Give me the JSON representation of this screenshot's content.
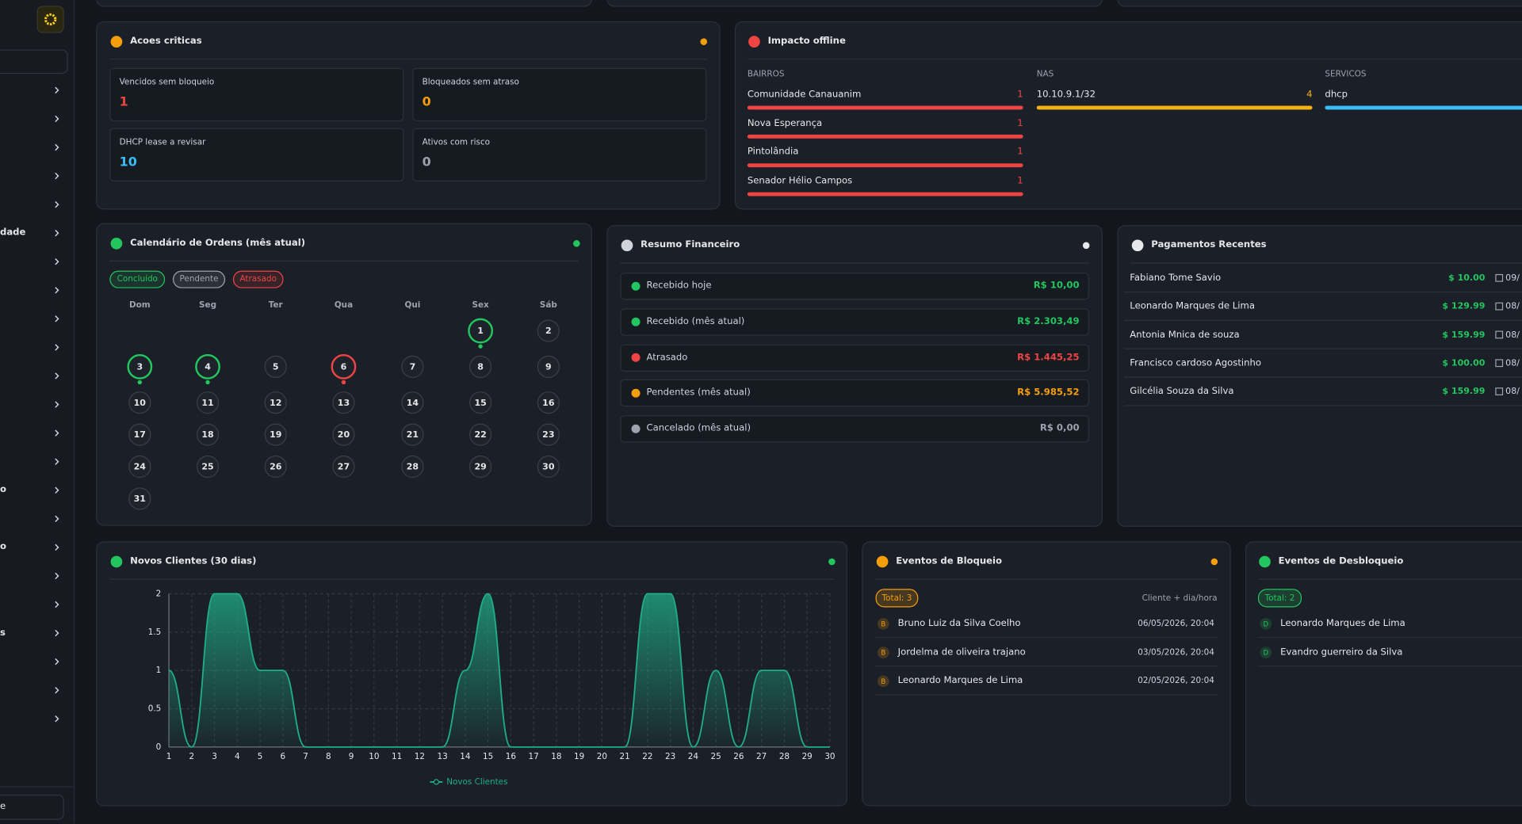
{
  "sidebar": {
    "items": [
      null,
      null,
      null,
      null,
      null,
      "dade",
      null,
      null,
      null,
      null,
      null,
      null,
      null,
      null,
      "o",
      null,
      "o",
      null,
      null,
      "s",
      null,
      null,
      null
    ],
    "footer": "e"
  },
  "acoes_criticas": {
    "title": "Acoes criticas",
    "icon_color": "#f59e0b",
    "status_dot": "#f59e0b",
    "tiles": [
      {
        "label": "Vencidos sem bloqueio",
        "value": 1,
        "color": "#ef4444"
      },
      {
        "label": "Bloqueados sem atraso",
        "value": 0,
        "color": "#f59e0b"
      },
      {
        "label": "DHCP lease a revisar",
        "value": 10,
        "color": "#38bdf8"
      },
      {
        "label": "Ativos com risco",
        "value": 0,
        "color": "#9ca3af"
      }
    ]
  },
  "impacto_offline": {
    "title": "Impacto offline",
    "icon_color": "#ef4444",
    "columns": [
      {
        "header": "BAIRROS",
        "color": "#ef4444",
        "items": [
          {
            "name": "Comunidade Canauanim",
            "value": 1
          },
          {
            "name": "Nova Esperança",
            "value": 1
          },
          {
            "name": "Pintolândia",
            "value": 1
          },
          {
            "name": "Senador Hélio Campos",
            "value": 1
          }
        ]
      },
      {
        "header": "NAS",
        "color": "#f5b014",
        "items": [
          {
            "name": "10.10.9.1/32",
            "value": 4
          }
        ]
      },
      {
        "header": "SERVICOS",
        "color": "#38bdf8",
        "items": [
          {
            "name": "dhcp"
          }
        ]
      }
    ]
  },
  "calendario": {
    "title": "Calendário de Ordens (mês atual)",
    "icon_color": "#22c55e",
    "status_dot": "#22c55e",
    "legend": [
      {
        "label": "Concluído",
        "color": "#22c55e",
        "days": [
          1,
          3,
          4
        ]
      },
      {
        "label": "Pendente",
        "color": "#9ca3af",
        "days": []
      },
      {
        "label": "Atrasado",
        "color": "#ef4444",
        "days": [
          6
        ]
      }
    ],
    "weekdays": [
      "Dom",
      "Seg",
      "Ter",
      "Qua",
      "Qui",
      "Sex",
      "Sáb"
    ],
    "weeks": [
      [
        null,
        null,
        null,
        null,
        null,
        1,
        2
      ],
      [
        3,
        4,
        5,
        6,
        7,
        8,
        9
      ],
      [
        10,
        11,
        12,
        13,
        14,
        15,
        16
      ],
      [
        17,
        18,
        19,
        20,
        21,
        22,
        23
      ],
      [
        24,
        25,
        26,
        27,
        28,
        29,
        30
      ],
      [
        31,
        null,
        null,
        null,
        null,
        null,
        null
      ]
    ]
  },
  "resumo_financeiro": {
    "title": "Resumo Financeiro",
    "icon_color": "#d1d5db",
    "status_dot": "#e5e7eb",
    "rows": [
      {
        "label": "Recebido hoje",
        "value": "R$ 10,00",
        "color": "#22c55e"
      },
      {
        "label": "Recebido (mês atual)",
        "value": "R$ 2.303,49",
        "color": "#22c55e"
      },
      {
        "label": "Atrasado",
        "value": "R$ 1.445,25",
        "color": "#ef4444"
      },
      {
        "label": "Pendentes (mês atual)",
        "value": "R$ 5.985,52",
        "color": "#f59e0b"
      },
      {
        "label": "Cancelado (mês atual)",
        "value": "R$ 0,00",
        "color": "#9ca3af"
      }
    ]
  },
  "pagamentos_recentes": {
    "title": "Pagamentos Recentes",
    "icon_color": "#e5e7eb",
    "rows": [
      {
        "name": "Fabiano Tome Savio",
        "amount": "$ 10.00",
        "date": "09/"
      },
      {
        "name": "Leonardo Marques de Lima",
        "amount": "$ 129.99",
        "date": "08/"
      },
      {
        "name": "Antonia Mnica de souza",
        "amount": "$ 159.99",
        "date": "08/"
      },
      {
        "name": "Francisco cardoso Agostinho",
        "amount": "$ 100.00",
        "date": "08/"
      },
      {
        "name": "Gilcélia Souza da Silva",
        "amount": "$ 159.99",
        "date": "08/"
      }
    ]
  },
  "chart_data": {
    "type": "line",
    "title": "Novos Clientes (30 dias)",
    "icon_color": "#22c55e",
    "status_dot": "#22c55e",
    "categories": [
      "1",
      "2",
      "3",
      "4",
      "5",
      "6",
      "7",
      "8",
      "9",
      "10",
      "11",
      "12",
      "13",
      "14",
      "15",
      "16",
      "17",
      "18",
      "19",
      "20",
      "21",
      "22",
      "23",
      "24",
      "25",
      "26",
      "27",
      "28",
      "29",
      "30"
    ],
    "series": [
      {
        "name": "Novos Clientes",
        "color": "#1fae86",
        "values": [
          1,
          0,
          2,
          2,
          1,
          1,
          0,
          0,
          0,
          0,
          0,
          0,
          0,
          1,
          2,
          0,
          0,
          0,
          0,
          0,
          0,
          2,
          2,
          0,
          1,
          0,
          1,
          1,
          0,
          0
        ]
      }
    ],
    "ylim": [
      0,
      2
    ],
    "yticks": [
      0,
      0.5,
      1,
      1.5,
      2
    ],
    "grid": true
  },
  "eventos_bloqueio": {
    "title": "Eventos de Bloqueio",
    "icon_color": "#f59e0b",
    "status_dot": "#f59e0b",
    "total": "Total: 3",
    "column_label": "Cliente + dia/hora",
    "rows": [
      {
        "initial": "B",
        "name": "Bruno Luiz da Silva Coelho",
        "date": "06/05/2026, 20:04"
      },
      {
        "initial": "B",
        "name": "Jordelma de oliveira trajano",
        "date": "03/05/2026, 20:04"
      },
      {
        "initial": "B",
        "name": "Leonardo Marques de Lima",
        "date": "02/05/2026, 20:04"
      }
    ]
  },
  "eventos_desbloqueio": {
    "title": "Eventos de Desbloqueio",
    "icon_color": "#22c55e",
    "total": "Total: 2",
    "rows": [
      {
        "initial": "D",
        "name": "Leonardo Marques de Lima"
      },
      {
        "initial": "D",
        "name": "Evandro guerreiro da Silva"
      }
    ]
  }
}
